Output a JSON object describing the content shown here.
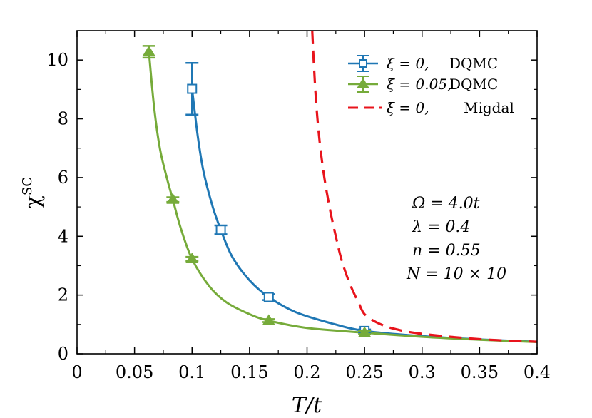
{
  "chart_data": {
    "type": "line",
    "xlabel": "T/t",
    "ylabel": "χ^SC",
    "ylabel_main": "χ",
    "ylabel_sup": "SC",
    "xlim": [
      0,
      0.4
    ],
    "ylim": [
      0,
      11
    ],
    "x_ticks": [
      0,
      0.05,
      0.1,
      0.15,
      0.2,
      0.25,
      0.3,
      0.35,
      0.4
    ],
    "x_tick_labels": [
      "0",
      "0.05",
      "0.1",
      "0.15",
      "0.2",
      "0.25",
      "0.3",
      "0.35",
      "0.4"
    ],
    "y_ticks": [
      0,
      2,
      4,
      6,
      8,
      10
    ],
    "y_tick_labels": [
      "0",
      "2",
      "4",
      "6",
      "8",
      "10"
    ],
    "grid": false,
    "legend_position": "top-right",
    "series": [
      {
        "name": "ξ = 0, DQMC",
        "legend_label": "ξ = 0,",
        "legend_method": "DQMC",
        "color": "#1f77b4",
        "marker": "square-open",
        "points": [
          {
            "x": 0.1,
            "y": 9.02,
            "err": 0.88
          },
          {
            "x": 0.125,
            "y": 4.22,
            "err": 0.15
          },
          {
            "x": 0.1667,
            "y": 1.93,
            "err": 0.1
          },
          {
            "x": 0.25,
            "y": 0.78,
            "err": 0.05
          }
        ],
        "fit": [
          {
            "x": 0.1,
            "y": 9.02
          },
          {
            "x": 0.105,
            "y": 7.4
          },
          {
            "x": 0.11,
            "y": 6.2
          },
          {
            "x": 0.118,
            "y": 5.0
          },
          {
            "x": 0.125,
            "y": 4.22
          },
          {
            "x": 0.135,
            "y": 3.3
          },
          {
            "x": 0.15,
            "y": 2.5
          },
          {
            "x": 0.1667,
            "y": 1.93
          },
          {
            "x": 0.19,
            "y": 1.42
          },
          {
            "x": 0.22,
            "y": 1.05
          },
          {
            "x": 0.25,
            "y": 0.78
          },
          {
            "x": 0.3,
            "y": 0.6
          },
          {
            "x": 0.35,
            "y": 0.49
          },
          {
            "x": 0.4,
            "y": 0.41
          }
        ]
      },
      {
        "name": "ξ = 0.05, DQMC",
        "legend_label": "ξ = 0.05,",
        "legend_method": "DQMC",
        "color": "#76ab3a",
        "marker": "triangle-filled",
        "points": [
          {
            "x": 0.0625,
            "y": 10.28,
            "err": 0.2
          },
          {
            "x": 0.0833,
            "y": 5.25,
            "err": 0.08
          },
          {
            "x": 0.1,
            "y": 3.23,
            "err": 0.07
          },
          {
            "x": 0.1667,
            "y": 1.13,
            "err": 0.05
          },
          {
            "x": 0.25,
            "y": 0.72,
            "err": 0.05
          }
        ],
        "fit": [
          {
            "x": 0.0625,
            "y": 10.28
          },
          {
            "x": 0.067,
            "y": 8.4
          },
          {
            "x": 0.072,
            "y": 7.0
          },
          {
            "x": 0.078,
            "y": 6.0
          },
          {
            "x": 0.0833,
            "y": 5.25
          },
          {
            "x": 0.09,
            "y": 4.3
          },
          {
            "x": 0.1,
            "y": 3.23
          },
          {
            "x": 0.115,
            "y": 2.3
          },
          {
            "x": 0.13,
            "y": 1.75
          },
          {
            "x": 0.15,
            "y": 1.35
          },
          {
            "x": 0.1667,
            "y": 1.13
          },
          {
            "x": 0.2,
            "y": 0.88
          },
          {
            "x": 0.25,
            "y": 0.72
          },
          {
            "x": 0.3,
            "y": 0.58
          },
          {
            "x": 0.35,
            "y": 0.48
          },
          {
            "x": 0.4,
            "y": 0.4
          }
        ]
      },
      {
        "name": "ξ = 0, Migdal",
        "legend_label": "ξ = 0,",
        "legend_method": "Migdal",
        "color": "#e8141c",
        "marker": "dashed-line",
        "points": [],
        "fit": [
          {
            "x": 0.2045,
            "y": 11.0
          },
          {
            "x": 0.206,
            "y": 9.8
          },
          {
            "x": 0.208,
            "y": 8.5
          },
          {
            "x": 0.211,
            "y": 7.2
          },
          {
            "x": 0.215,
            "y": 6.0
          },
          {
            "x": 0.22,
            "y": 4.9
          },
          {
            "x": 0.225,
            "y": 4.0
          },
          {
            "x": 0.23,
            "y": 3.2
          },
          {
            "x": 0.237,
            "y": 2.4
          },
          {
            "x": 0.245,
            "y": 1.72
          },
          {
            "x": 0.25,
            "y": 1.35
          },
          {
            "x": 0.26,
            "y": 1.08
          },
          {
            "x": 0.275,
            "y": 0.86
          },
          {
            "x": 0.3,
            "y": 0.68
          },
          {
            "x": 0.35,
            "y": 0.5
          },
          {
            "x": 0.4,
            "y": 0.41
          }
        ]
      }
    ],
    "annotations": [
      "Ω = 4.0t",
      "λ = 0.4",
      "n = 0.55",
      "N = 10 × 10"
    ]
  }
}
